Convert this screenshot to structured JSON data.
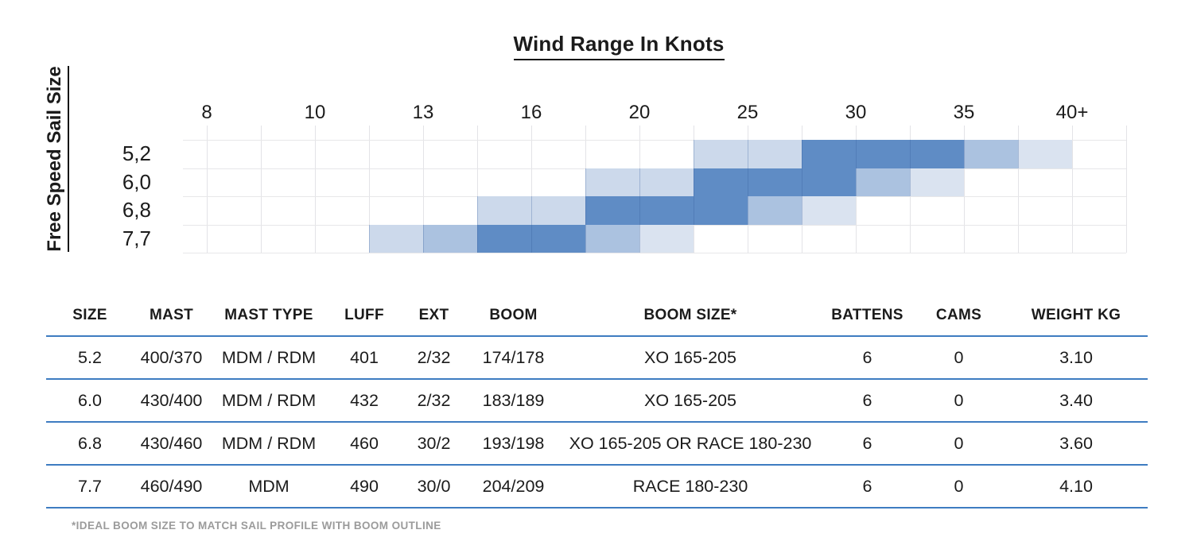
{
  "chart_data": [
    {
      "type": "heatmap",
      "title": "Wind Range In Knots",
      "ylabel": "Free Speed Sail Size",
      "x_tick_labels": [
        "8",
        "10",
        "13",
        "16",
        "20",
        "25",
        "30",
        "35",
        "40+"
      ],
      "x_axis_note": "ticks mark every second grid column; shaded bands snap to half-intervals",
      "grid": true,
      "legend_position": "none",
      "intensity_colors": {
        "L": "#ccd9eb",
        "M": "#abc2e0",
        "D": "#5f8cc5",
        "F": "#dae3f0"
      },
      "intensity_meaning": {
        "L": "light - usable",
        "M": "medium - good",
        "D": "dark - ideal",
        "F": "faint - upper limit"
      },
      "rows": [
        {
          "label": "5,2",
          "wind_range_knots": "≈23–40+",
          "cells": [
            "",
            "",
            "",
            "",
            "",
            "",
            "",
            "",
            "",
            "L",
            "L",
            "D",
            "D",
            "D",
            "M",
            "F",
            ""
          ]
        },
        {
          "label": "6,0",
          "wind_range_knots": "≈18–35",
          "cells": [
            "",
            "",
            "",
            "",
            "",
            "",
            "",
            "L",
            "L",
            "D",
            "D",
            "D",
            "M",
            "F",
            "",
            "",
            ""
          ]
        },
        {
          "label": "6,8",
          "wind_range_knots": "≈14.5–30",
          "cells": [
            "",
            "",
            "",
            "",
            "",
            "L",
            "L",
            "D",
            "D",
            "D",
            "M",
            "F",
            "",
            "",
            "",
            "",
            ""
          ]
        },
        {
          "label": "7,7",
          "wind_range_knots": "≈11.5–23",
          "cells": [
            "",
            "",
            "",
            "L",
            "M",
            "D",
            "D",
            "M",
            "F",
            "",
            "",
            "",
            "",
            "",
            "",
            "",
            ""
          ]
        }
      ]
    },
    {
      "type": "table",
      "columns": [
        "SIZE",
        "MAST",
        "MAST TYPE",
        "LUFF",
        "EXT",
        "BOOM",
        "BOOM SIZE*",
        "BATTENS",
        "CAMS",
        "WEIGHT KG"
      ],
      "rows": [
        [
          "5.2",
          "400/370",
          "MDM / RDM",
          "401",
          "2/32",
          "174/178",
          "XO 165-205",
          "6",
          "0",
          "3.10"
        ],
        [
          "6.0",
          "430/400",
          "MDM / RDM",
          "432",
          "2/32",
          "183/189",
          "XO 165-205",
          "6",
          "0",
          "3.40"
        ],
        [
          "6.8",
          "430/460",
          "MDM / RDM",
          "460",
          "30/2",
          "193/198",
          "XO 165-205 OR RACE 180-230",
          "6",
          "0",
          "3.60"
        ],
        [
          "7.7",
          "460/490",
          "MDM",
          "490",
          "30/0",
          "204/209",
          "RACE 180-230",
          "6",
          "0",
          "4.10"
        ]
      ],
      "footnote": "*IDEAL BOOM SIZE TO MATCH SAIL PROFILE WITH BOOM OUTLINE",
      "rule_color": "#3e7cc1"
    }
  ]
}
